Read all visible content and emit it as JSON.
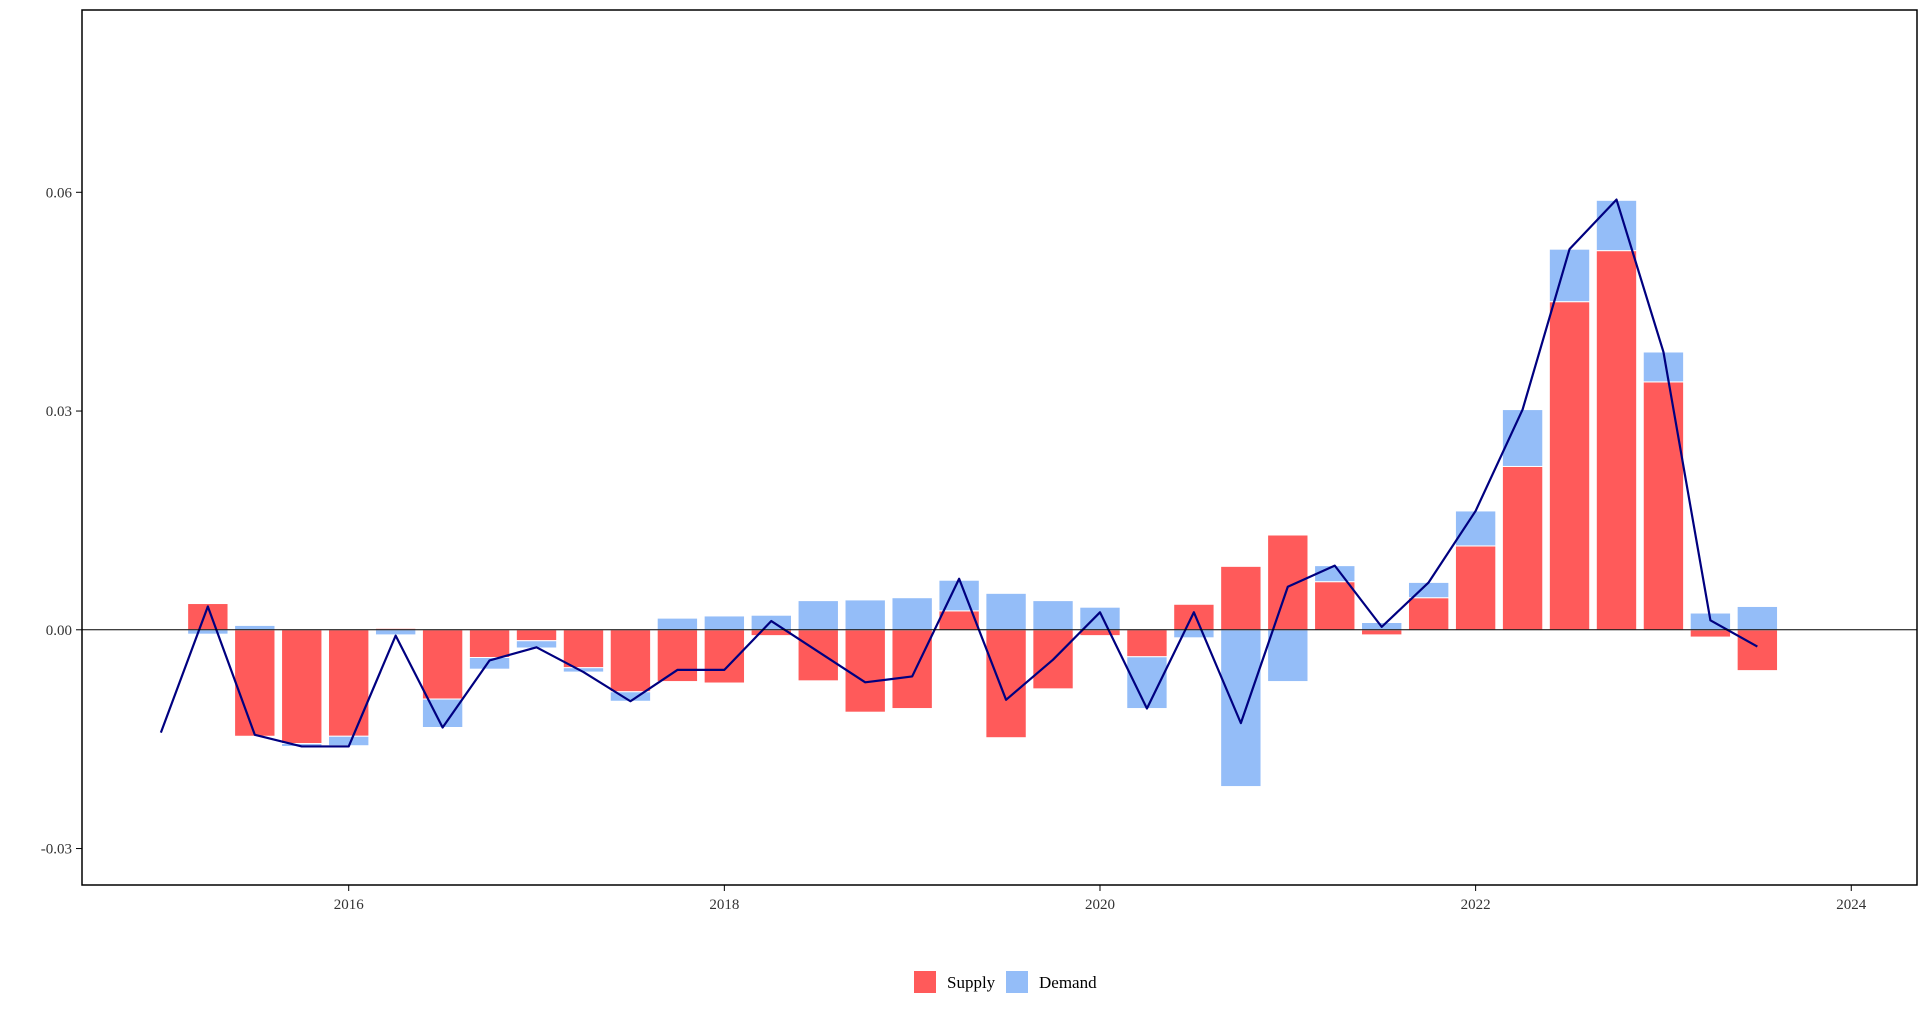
{
  "chart_data": {
    "type": "bar",
    "stacked": true,
    "title": "",
    "xlabel": "",
    "ylabel": "",
    "x": [
      "2015Q1",
      "2015Q2",
      "2015Q3",
      "2015Q4",
      "2016Q1",
      "2016Q2",
      "2016Q3",
      "2016Q4",
      "2017Q1",
      "2017Q2",
      "2017Q3",
      "2017Q4",
      "2018Q1",
      "2018Q2",
      "2018Q3",
      "2018Q4",
      "2019Q1",
      "2019Q2",
      "2019Q3",
      "2019Q4",
      "2020Q1",
      "2020Q2",
      "2020Q3",
      "2020Q4",
      "2021Q1",
      "2021Q2",
      "2021Q3",
      "2021Q4",
      "2022Q1",
      "2022Q2",
      "2022Q3",
      "2022Q4",
      "2023Q1",
      "2023Q2",
      "2023Q3"
    ],
    "x_numeric": [
      2015.0,
      2015.25,
      2015.5,
      2015.75,
      2016.0,
      2016.25,
      2016.5,
      2016.75,
      2017.0,
      2017.25,
      2017.5,
      2017.75,
      2018.0,
      2018.25,
      2018.5,
      2018.75,
      2019.0,
      2019.25,
      2019.5,
      2019.75,
      2020.0,
      2020.25,
      2020.5,
      2020.75,
      2021.0,
      2021.25,
      2021.5,
      2021.75,
      2022.0,
      2022.25,
      2022.5,
      2022.75,
      2023.0,
      2023.25,
      2023.5
    ],
    "series": [
      {
        "name": "Supply",
        "color": "#ff5a5a",
        "values": [
          null,
          0.0036,
          -0.0146,
          -0.0156,
          -0.0146,
          0.0002,
          -0.0095,
          -0.0038,
          -0.0015,
          -0.0052,
          -0.0085,
          -0.0071,
          -0.0073,
          -0.0008,
          -0.007,
          -0.0113,
          -0.0108,
          0.0026,
          -0.0148,
          -0.0081,
          -0.0008,
          -0.0037,
          0.0035,
          0.0087,
          0.013,
          0.0066,
          -0.0007,
          0.0044,
          0.0115,
          0.0224,
          0.045,
          0.052,
          0.034,
          -0.001,
          -0.0056
        ]
      },
      {
        "name": "Demand",
        "color": "#94bdf8",
        "values": [
          null,
          -0.0006,
          0.0006,
          -0.0004,
          -0.0013,
          -0.0007,
          -0.0039,
          -0.0016,
          -0.001,
          -0.0006,
          -0.0013,
          0.0016,
          0.0019,
          0.002,
          0.004,
          0.0041,
          0.0044,
          0.0042,
          0.005,
          0.004,
          0.0031,
          -0.0071,
          -0.0011,
          -0.0215,
          -0.0071,
          0.0022,
          0.001,
          0.0021,
          0.0048,
          0.0078,
          0.0072,
          0.0069,
          0.0041,
          0.0023,
          0.0032
        ]
      }
    ],
    "line": {
      "name": "",
      "color": "#000080",
      "values": [
        -0.0141,
        0.0032,
        -0.0144,
        -0.016,
        -0.016,
        -0.0008,
        -0.0134,
        -0.0042,
        -0.0024,
        -0.0058,
        -0.0098,
        -0.0055,
        -0.0055,
        0.0012,
        -0.003,
        -0.0072,
        -0.0064,
        0.007,
        -0.0096,
        -0.0041,
        0.0024,
        -0.0108,
        0.0024,
        -0.0128,
        0.0059,
        0.0088,
        0.0004,
        0.0065,
        0.0163,
        0.0302,
        0.0522,
        0.059,
        0.0381,
        0.0013,
        -0.0023
      ]
    },
    "ylim": [
      -0.035,
      0.085
    ],
    "xlim": [
      2014.58,
      2024.35
    ],
    "yticks": [
      {
        "value": -0.03,
        "label": "-0.03"
      },
      {
        "value": 0.0,
        "label": "0.00"
      },
      {
        "value": 0.03,
        "label": "0.03"
      },
      {
        "value": 0.06,
        "label": "0.06"
      }
    ],
    "xticks": [
      {
        "value": 2016,
        "label": "2016"
      },
      {
        "value": 2018,
        "label": "2018"
      },
      {
        "value": 2020,
        "label": "2020"
      },
      {
        "value": 2022,
        "label": "2022"
      },
      {
        "value": 2024,
        "label": "2024"
      }
    ],
    "zero_line": true,
    "grid": false,
    "legend": {
      "position": "bottom",
      "entries": [
        {
          "label": "Supply",
          "color": "#ff5a5a"
        },
        {
          "label": "Demand",
          "color": "#94bdf8"
        }
      ]
    }
  }
}
